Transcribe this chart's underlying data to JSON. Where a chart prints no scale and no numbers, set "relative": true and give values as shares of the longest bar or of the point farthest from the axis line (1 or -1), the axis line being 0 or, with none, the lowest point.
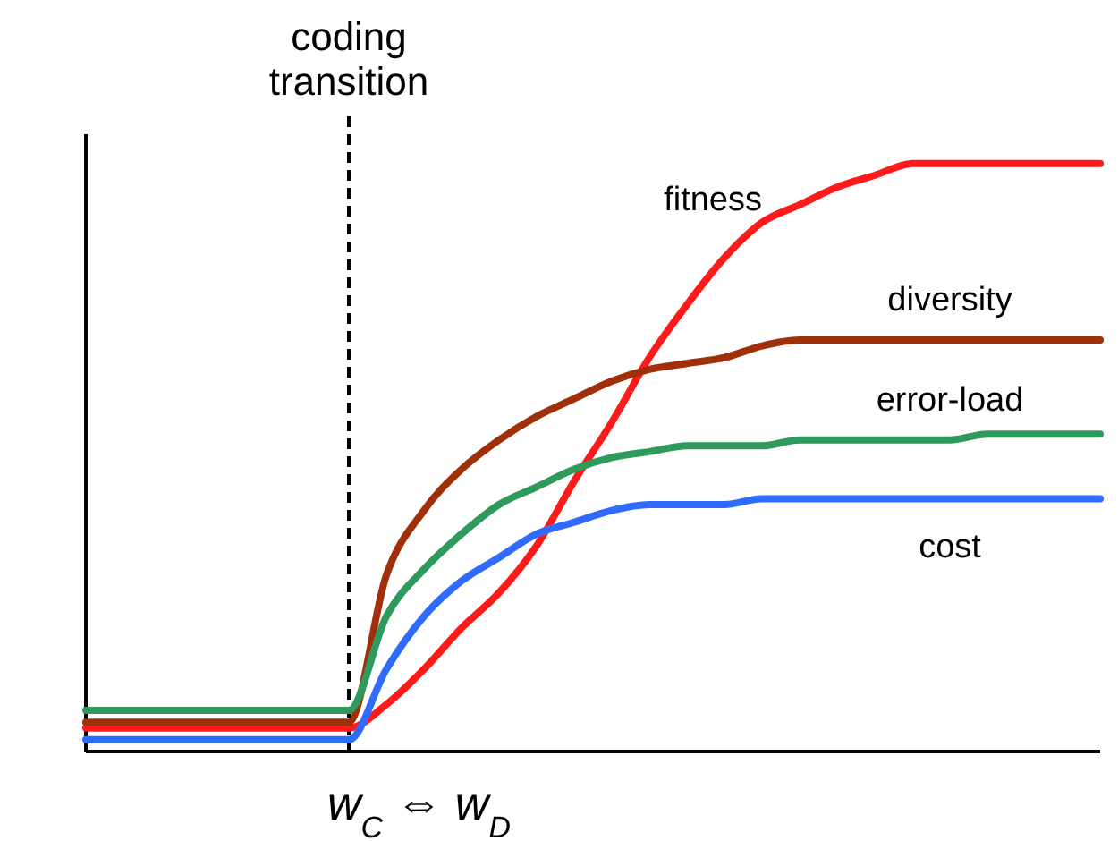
{
  "chart_data": {
    "type": "line",
    "relative": true,
    "line_style": "solid",
    "categories": [
      null,
      null,
      null,
      null,
      null,
      null,
      null,
      null,
      null,
      null,
      null,
      null,
      null,
      null,
      null,
      null,
      null,
      null,
      null,
      null,
      null,
      null,
      null,
      null,
      null,
      null,
      null,
      null
    ],
    "xlabel": "w$_{C}$ ⇔ w$_{D}$",
    "annotations": [
      "coding transition"
    ],
    "series": [
      {
        "name": "fitness",
        "color": "#ff1a1a",
        "values": [
          0.04,
          0.04,
          0.04,
          0.04,
          0.04,
          0.04,
          0.04,
          0.04,
          0.08,
          0.14,
          0.21,
          0.27,
          0.35,
          0.46,
          0.56,
          0.67,
          0.76,
          0.84,
          0.9,
          0.93,
          0.96,
          0.98,
          1,
          1,
          1,
          1,
          1,
          1
        ]
      },
      {
        "name": "diversity",
        "color": "#a0300a",
        "values": [
          0.05,
          0.05,
          0.05,
          0.05,
          0.05,
          0.05,
          0.05,
          0.05,
          0.3,
          0.41,
          0.48,
          0.53,
          0.57,
          0.6,
          0.63,
          0.65,
          0.66,
          0.67,
          0.69,
          0.7,
          0.7,
          0.7,
          0.7,
          0.7,
          0.7,
          0.7,
          0.7,
          0.7
        ]
      },
      {
        "name": "error-load",
        "color": "#2e9a5c",
        "values": [
          0.07,
          0.07,
          0.07,
          0.07,
          0.07,
          0.07,
          0.07,
          0.07,
          0.23,
          0.31,
          0.37,
          0.42,
          0.45,
          0.48,
          0.5,
          0.51,
          0.52,
          0.52,
          0.52,
          0.53,
          0.53,
          0.53,
          0.53,
          0.53,
          0.54,
          0.54,
          0.54,
          0.54
        ]
      },
      {
        "name": "cost",
        "color": "#2f6bff",
        "values": [
          0.02,
          0.02,
          0.02,
          0.02,
          0.02,
          0.02,
          0.02,
          0.02,
          0.14,
          0.23,
          0.29,
          0.33,
          0.37,
          0.39,
          0.41,
          0.42,
          0.42,
          0.42,
          0.43,
          0.43,
          0.43,
          0.43,
          0.43,
          0.43,
          0.43,
          0.43,
          0.43,
          0.43
        ]
      }
    ]
  }
}
